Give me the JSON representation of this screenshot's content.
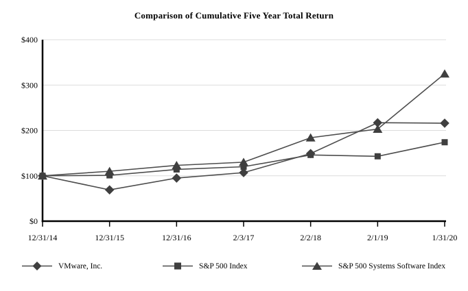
{
  "title": "Comparison of Cumulative Five Year Total Return",
  "chart_data": {
    "type": "line",
    "title": "Comparison of Cumulative Five Year Total Return",
    "x_labels": [
      "12/31/14",
      "12/31/15",
      "12/31/16",
      "2/3/17",
      "2/2/18",
      "2/1/19",
      "1/31/20"
    ],
    "y_axis": {
      "min": 0,
      "max": 400,
      "tick_interval": 100,
      "tick_labels": [
        "$0",
        "$100",
        "$200",
        "$300",
        "$400"
      ]
    },
    "series": [
      {
        "name": "VMware, Inc.",
        "marker": "diamond",
        "values": [
          100,
          69,
          95,
          107,
          149,
          217,
          216
        ]
      },
      {
        "name": "S&P 500 Index",
        "marker": "square",
        "values": [
          100,
          101,
          114,
          120,
          146,
          143,
          174
        ]
      },
      {
        "name": "S&P 500 Systems Software Index",
        "marker": "triangle",
        "values": [
          100,
          110,
          123,
          130,
          184,
          203,
          325
        ]
      }
    ],
    "grid": "horizontal-only",
    "legend_position": "bottom",
    "colors": {
      "line": "#4d4d4d",
      "marker": "#3f3f3f",
      "grid": "#dcdcdc",
      "axis": "#000000",
      "text": "#000000",
      "background": "#ffffff"
    }
  }
}
